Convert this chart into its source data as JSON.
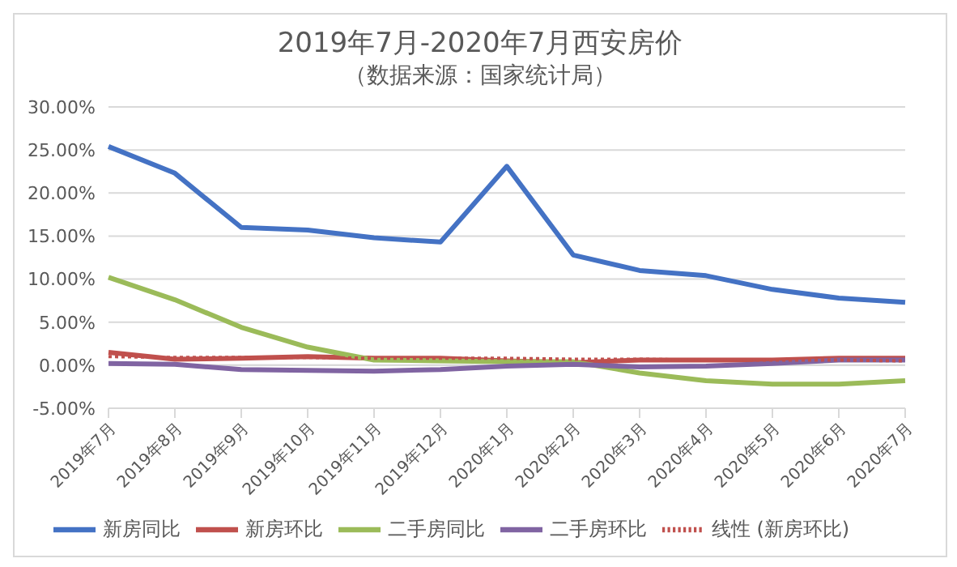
{
  "chart_data": {
    "type": "line",
    "title": "2019年7月-2020年7月西安房价",
    "subtitle": "（数据来源：国家统计局）",
    "categories": [
      "2019年7月",
      "2019年8月",
      "2019年9月",
      "2019年10月",
      "2019年11月",
      "2019年12月",
      "2020年1月",
      "2020年2月",
      "2020年3月",
      "2020年4月",
      "2020年5月",
      "2020年6月",
      "2020年7月"
    ],
    "series": [
      {
        "name": "新房同比",
        "color": "#4472c4",
        "values": [
          25.4,
          22.3,
          16.0,
          15.7,
          14.8,
          14.3,
          23.1,
          12.8,
          11.0,
          10.4,
          8.8,
          7.8,
          7.3
        ]
      },
      {
        "name": "新房环比",
        "color": "#c0504d",
        "values": [
          1.5,
          0.7,
          0.8,
          1.0,
          0.8,
          0.8,
          0.5,
          0.3,
          0.6,
          0.6,
          0.6,
          0.8,
          0.8
        ]
      },
      {
        "name": "二手房同比",
        "color": "#9bbb59",
        "values": [
          10.2,
          7.6,
          4.4,
          2.1,
          0.6,
          0.5,
          0.4,
          0.4,
          -0.9,
          -1.8,
          -2.2,
          -2.2,
          -1.8
        ]
      },
      {
        "name": "二手房环比",
        "color": "#8064a2",
        "values": [
          0.2,
          0.1,
          -0.5,
          -0.6,
          -0.7,
          -0.5,
          -0.1,
          0.1,
          -0.2,
          -0.1,
          0.2,
          0.6,
          0.6
        ]
      },
      {
        "name": "线性 (新房环比)",
        "color": "#c0504d",
        "line_style": "dotted",
        "values": [
          1.0,
          0.9,
          0.9,
          0.9,
          0.8,
          0.8,
          0.8,
          0.7,
          0.7,
          0.6,
          0.6,
          0.6,
          0.5
        ]
      }
    ],
    "ylim": [
      -5,
      30
    ],
    "yticks": [
      {
        "value": -5,
        "label": "-5.00%"
      },
      {
        "value": 0,
        "label": "0.00%"
      },
      {
        "value": 5,
        "label": "5.00%"
      },
      {
        "value": 10,
        "label": "10.00%"
      },
      {
        "value": 15,
        "label": "15.00%"
      },
      {
        "value": 20,
        "label": "20.00%"
      },
      {
        "value": 25,
        "label": "25.00%"
      },
      {
        "value": 30,
        "label": "30.00%"
      }
    ],
    "grid": "y",
    "legend": "bottom",
    "marker": "none",
    "line_style": "solid"
  }
}
